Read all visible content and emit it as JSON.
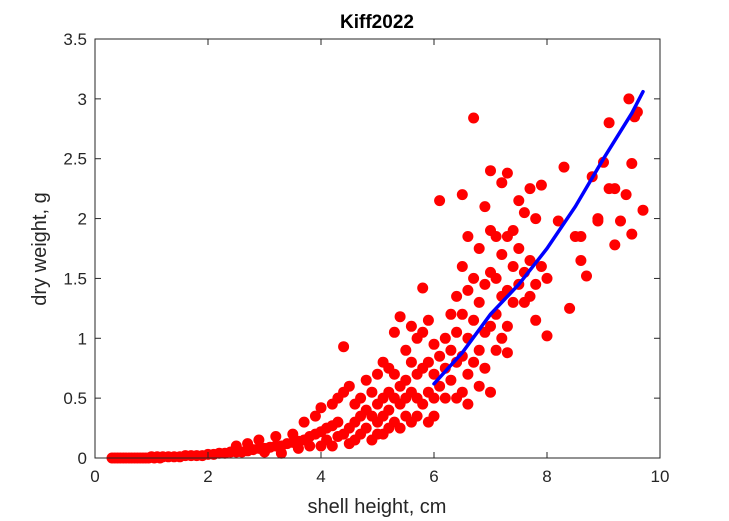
{
  "chart_data": {
    "type": "scatter",
    "title": "Kiff2022",
    "xlabel": "shell height, cm",
    "ylabel": "dry weight, g",
    "xlim": [
      0,
      10
    ],
    "ylim": [
      0,
      3.5
    ],
    "xticks": [
      "0",
      "2",
      "4",
      "6",
      "8",
      "10"
    ],
    "yticks": [
      "0",
      "0.5",
      "1",
      "1.5",
      "2",
      "2.5",
      "3",
      "3.5"
    ],
    "grid": false,
    "legend": "none",
    "series": [
      {
        "kind": "points",
        "color": "#ff0000",
        "points": [
          [
            0.3,
            0.0
          ],
          [
            0.35,
            0.0
          ],
          [
            0.4,
            0.0
          ],
          [
            0.45,
            0.0
          ],
          [
            0.5,
            0.0
          ],
          [
            0.55,
            0.0
          ],
          [
            0.6,
            0.0
          ],
          [
            0.65,
            0.0
          ],
          [
            0.7,
            0.0
          ],
          [
            0.75,
            0.0
          ],
          [
            0.8,
            0.0
          ],
          [
            0.85,
            0.0
          ],
          [
            0.9,
            0.0
          ],
          [
            0.95,
            0.0
          ],
          [
            1.0,
            0.01
          ],
          [
            1.05,
            0.0
          ],
          [
            1.1,
            0.01
          ],
          [
            1.15,
            0.0
          ],
          [
            1.2,
            0.01
          ],
          [
            1.3,
            0.01
          ],
          [
            1.4,
            0.01
          ],
          [
            1.5,
            0.01
          ],
          [
            1.6,
            0.02
          ],
          [
            1.7,
            0.02
          ],
          [
            1.8,
            0.02
          ],
          [
            1.9,
            0.02
          ],
          [
            2.0,
            0.03
          ],
          [
            2.1,
            0.03
          ],
          [
            2.2,
            0.04
          ],
          [
            2.3,
            0.04
          ],
          [
            2.4,
            0.05
          ],
          [
            2.5,
            0.05
          ],
          [
            2.6,
            0.05
          ],
          [
            2.7,
            0.06
          ],
          [
            2.8,
            0.07
          ],
          [
            2.9,
            0.08
          ],
          [
            3.0,
            0.08
          ],
          [
            3.1,
            0.09
          ],
          [
            3.2,
            0.1
          ],
          [
            3.3,
            0.1
          ],
          [
            3.4,
            0.12
          ],
          [
            3.5,
            0.13
          ],
          [
            3.6,
            0.14
          ],
          [
            3.7,
            0.15
          ],
          [
            3.8,
            0.18
          ],
          [
            3.9,
            0.2
          ],
          [
            4.0,
            0.22
          ],
          [
            4.1,
            0.25
          ],
          [
            4.2,
            0.27
          ],
          [
            4.3,
            0.3
          ],
          [
            2.5,
            0.1
          ],
          [
            2.7,
            0.12
          ],
          [
            2.9,
            0.15
          ],
          [
            3.0,
            0.05
          ],
          [
            3.2,
            0.18
          ],
          [
            3.3,
            0.04
          ],
          [
            3.5,
            0.2
          ],
          [
            3.6,
            0.08
          ],
          [
            3.7,
            0.3
          ],
          [
            3.8,
            0.1
          ],
          [
            3.9,
            0.35
          ],
          [
            4.0,
            0.1
          ],
          [
            4.0,
            0.42
          ],
          [
            4.1,
            0.15
          ],
          [
            4.2,
            0.45
          ],
          [
            4.2,
            0.1
          ],
          [
            4.3,
            0.5
          ],
          [
            4.3,
            0.18
          ],
          [
            4.4,
            0.55
          ],
          [
            4.4,
            0.2
          ],
          [
            4.4,
            0.93
          ],
          [
            4.5,
            0.6
          ],
          [
            4.5,
            0.25
          ],
          [
            4.5,
            0.12
          ],
          [
            4.6,
            0.45
          ],
          [
            4.6,
            0.3
          ],
          [
            4.6,
            0.15
          ],
          [
            4.7,
            0.5
          ],
          [
            4.7,
            0.35
          ],
          [
            4.7,
            0.2
          ],
          [
            4.8,
            0.65
          ],
          [
            4.8,
            0.4
          ],
          [
            4.8,
            0.25
          ],
          [
            4.9,
            0.55
          ],
          [
            4.9,
            0.35
          ],
          [
            4.9,
            0.15
          ],
          [
            5.0,
            0.7
          ],
          [
            5.0,
            0.45
          ],
          [
            5.0,
            0.3
          ],
          [
            5.0,
            0.2
          ],
          [
            5.1,
            0.8
          ],
          [
            5.1,
            0.5
          ],
          [
            5.1,
            0.35
          ],
          [
            5.1,
            0.2
          ],
          [
            5.2,
            0.75
          ],
          [
            5.2,
            0.55
          ],
          [
            5.2,
            0.4
          ],
          [
            5.2,
            0.25
          ],
          [
            5.3,
            1.05
          ],
          [
            5.3,
            0.7
          ],
          [
            5.3,
            0.5
          ],
          [
            5.3,
            0.3
          ],
          [
            5.4,
            1.18
          ],
          [
            5.4,
            0.6
          ],
          [
            5.4,
            0.45
          ],
          [
            5.4,
            0.25
          ],
          [
            5.5,
            0.9
          ],
          [
            5.5,
            0.65
          ],
          [
            5.5,
            0.5
          ],
          [
            5.5,
            0.35
          ],
          [
            5.6,
            1.1
          ],
          [
            5.6,
            0.8
          ],
          [
            5.6,
            0.55
          ],
          [
            5.6,
            0.3
          ],
          [
            5.7,
            1.0
          ],
          [
            5.7,
            0.7
          ],
          [
            5.7,
            0.5
          ],
          [
            5.7,
            0.35
          ],
          [
            5.8,
            1.42
          ],
          [
            5.8,
            1.05
          ],
          [
            5.8,
            0.75
          ],
          [
            5.8,
            0.45
          ],
          [
            5.9,
            1.15
          ],
          [
            5.9,
            0.8
          ],
          [
            5.9,
            0.55
          ],
          [
            5.9,
            0.3
          ],
          [
            6.0,
            0.95
          ],
          [
            6.0,
            0.7
          ],
          [
            6.0,
            0.5
          ],
          [
            6.0,
            0.35
          ],
          [
            6.1,
            2.15
          ],
          [
            6.1,
            0.85
          ],
          [
            6.1,
            0.6
          ],
          [
            6.2,
            1.0
          ],
          [
            6.2,
            0.75
          ],
          [
            6.2,
            0.5
          ],
          [
            6.3,
            1.2
          ],
          [
            6.3,
            0.9
          ],
          [
            6.3,
            0.65
          ],
          [
            6.4,
            1.35
          ],
          [
            6.4,
            1.05
          ],
          [
            6.4,
            0.8
          ],
          [
            6.4,
            0.5
          ],
          [
            6.5,
            2.2
          ],
          [
            6.5,
            1.6
          ],
          [
            6.5,
            1.2
          ],
          [
            6.5,
            0.85
          ],
          [
            6.5,
            0.55
          ],
          [
            6.6,
            1.85
          ],
          [
            6.6,
            1.4
          ],
          [
            6.6,
            1.0
          ],
          [
            6.6,
            0.7
          ],
          [
            6.6,
            0.45
          ],
          [
            6.7,
            2.84
          ],
          [
            6.7,
            1.5
          ],
          [
            6.7,
            1.15
          ],
          [
            6.7,
            0.8
          ],
          [
            6.8,
            1.75
          ],
          [
            6.8,
            1.3
          ],
          [
            6.8,
            0.9
          ],
          [
            6.8,
            0.6
          ],
          [
            6.9,
            2.1
          ],
          [
            6.9,
            1.45
          ],
          [
            6.9,
            1.05
          ],
          [
            6.9,
            0.75
          ],
          [
            7.0,
            2.4
          ],
          [
            7.0,
            1.9
          ],
          [
            7.0,
            1.55
          ],
          [
            7.0,
            1.1
          ],
          [
            7.0,
            0.55
          ],
          [
            7.1,
            1.85
          ],
          [
            7.1,
            1.5
          ],
          [
            7.1,
            1.2
          ],
          [
            7.1,
            0.9
          ],
          [
            7.2,
            2.3
          ],
          [
            7.2,
            1.7
          ],
          [
            7.2,
            1.35
          ],
          [
            7.2,
            1.0
          ],
          [
            7.3,
            2.38
          ],
          [
            7.3,
            1.85
          ],
          [
            7.3,
            1.4
          ],
          [
            7.3,
            1.1
          ],
          [
            7.3,
            0.88
          ],
          [
            7.4,
            1.9
          ],
          [
            7.4,
            1.6
          ],
          [
            7.4,
            1.3
          ],
          [
            7.5,
            2.15
          ],
          [
            7.5,
            1.75
          ],
          [
            7.5,
            1.45
          ],
          [
            7.6,
            2.05
          ],
          [
            7.6,
            1.55
          ],
          [
            7.6,
            1.3
          ],
          [
            7.7,
            2.25
          ],
          [
            7.7,
            1.65
          ],
          [
            7.7,
            1.35
          ],
          [
            7.8,
            2.0
          ],
          [
            7.8,
            1.45
          ],
          [
            7.8,
            1.15
          ],
          [
            7.9,
            2.28
          ],
          [
            7.9,
            1.6
          ],
          [
            8.0,
            1.02
          ],
          [
            8.0,
            1.5
          ],
          [
            8.2,
            1.98
          ],
          [
            8.3,
            2.43
          ],
          [
            8.4,
            1.25
          ],
          [
            8.5,
            1.85
          ],
          [
            8.6,
            1.65
          ],
          [
            8.7,
            1.52
          ],
          [
            8.8,
            2.35
          ],
          [
            8.9,
            1.98
          ],
          [
            9.0,
            2.47
          ],
          [
            9.1,
            2.8
          ],
          [
            9.1,
            2.25
          ],
          [
            9.2,
            1.78
          ],
          [
            9.3,
            1.98
          ],
          [
            9.4,
            2.2
          ],
          [
            9.45,
            3.0
          ],
          [
            9.5,
            2.46
          ],
          [
            9.5,
            1.87
          ],
          [
            9.55,
            2.85
          ],
          [
            9.6,
            2.89
          ],
          [
            9.7,
            2.07
          ],
          [
            9.2,
            2.25
          ],
          [
            8.9,
            2.0
          ],
          [
            8.6,
            1.85
          ]
        ]
      },
      {
        "kind": "curve",
        "color": "#0000ff",
        "points": [
          [
            6.0,
            0.62
          ],
          [
            6.5,
            0.88
          ],
          [
            7.0,
            1.2
          ],
          [
            7.5,
            1.45
          ],
          [
            8.0,
            1.75
          ],
          [
            8.5,
            2.1
          ],
          [
            9.0,
            2.5
          ],
          [
            9.5,
            2.88
          ],
          [
            9.7,
            3.06
          ]
        ]
      }
    ]
  }
}
